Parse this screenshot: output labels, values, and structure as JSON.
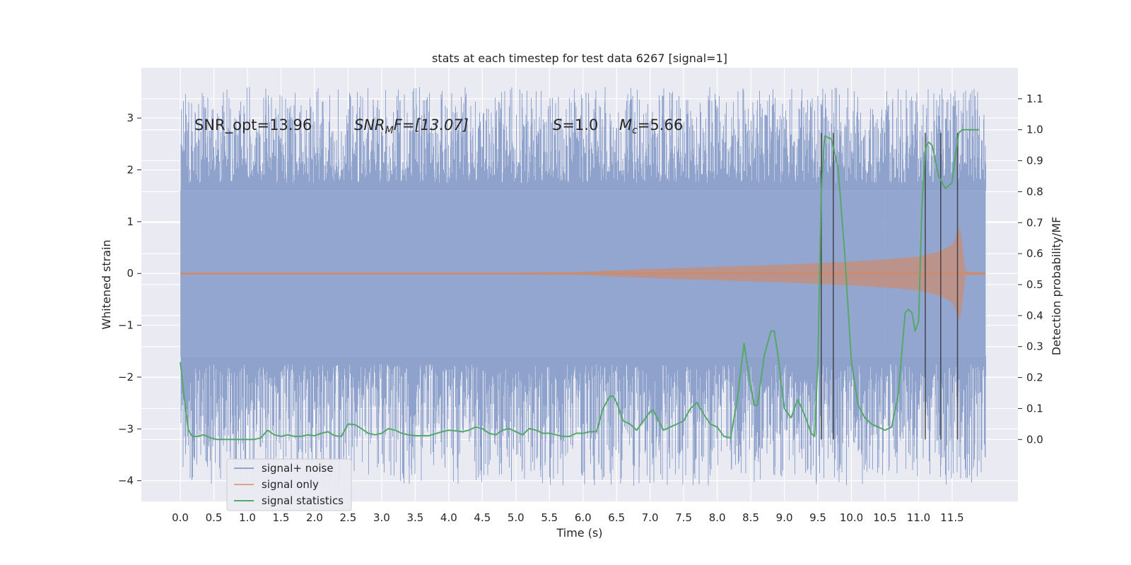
{
  "chart_data": {
    "type": "line",
    "title": "stats at each timestep for test data 6267 [signal=1]",
    "xlabel": "Time (s)",
    "ylabel": "Whitened strain",
    "ylabel_right": "Detection probability/MF",
    "xlim": [
      -0.58,
      12.48
    ],
    "ylim": [
      -4.4,
      3.97
    ],
    "ylim_right": [
      -0.2,
      1.2
    ],
    "x_ticks": [
      0.0,
      0.5,
      1.0,
      1.5,
      2.0,
      2.5,
      3.0,
      3.5,
      4.0,
      4.5,
      5.0,
      5.5,
      6.0,
      6.5,
      7.0,
      7.5,
      8.0,
      8.5,
      9.0,
      9.5,
      10.0,
      10.5,
      11.0,
      11.5
    ],
    "x_tick_labels": [
      "0.0",
      "0.5",
      "1.0",
      "1.5",
      "2.0",
      "2.5",
      "3.0",
      "3.5",
      "4.0",
      "4.5",
      "5.0",
      "5.5",
      "6.0",
      "6.5",
      "7.0",
      "7.5",
      "8.0",
      "8.5",
      "9.0",
      "9.5",
      "10.0",
      "10.5",
      "11.0",
      "11.5"
    ],
    "y_ticks": [
      -4,
      -3,
      -2,
      -1,
      0,
      1,
      2,
      3
    ],
    "y_tick_labels": [
      "−4",
      "−3",
      "−2",
      "−1",
      "0",
      "1",
      "2",
      "3"
    ],
    "y_ticks_right": [
      0.0,
      0.1,
      0.2,
      0.3,
      0.4,
      0.5,
      0.6,
      0.7,
      0.8,
      0.9,
      1.0,
      1.1
    ],
    "y_tick_labels_right": [
      "0.0",
      "0.1",
      "0.2",
      "0.3",
      "0.4",
      "0.5",
      "0.6",
      "0.7",
      "0.8",
      "0.9",
      "1.0",
      "1.1"
    ],
    "grid": true,
    "annotations": {
      "snr_opt": "SNR_opt=13.96",
      "snr_mf_sym": "SNR",
      "snr_mf_sub": "M",
      "snr_mf_rest": "F=[13.07]",
      "s_sym": "S",
      "s_rest": "=1.0",
      "mc_sym": "M",
      "mc_sub": "c",
      "mc_rest": "=5.66"
    },
    "series": [
      {
        "name": "signal+ noise",
        "color": "#8ea2cc",
        "kind": "noise",
        "x_range": [
          0.0,
          12.0
        ],
        "core_amplitude": 1.6,
        "max_amplitude": 3.6,
        "min_value": -4.1,
        "sample_rate_hz": 2048
      },
      {
        "name": "signal only",
        "color": "#dd8452",
        "kind": "chirp",
        "envelope_x": [
          0.0,
          5.0,
          6.0,
          6.5,
          7.0,
          7.5,
          8.0,
          8.5,
          9.0,
          9.5,
          10.0,
          10.5,
          11.0,
          11.3,
          11.5,
          11.62,
          11.7,
          12.0
        ],
        "envelope_amp": [
          0.02,
          0.02,
          0.03,
          0.06,
          0.09,
          0.11,
          0.13,
          0.15,
          0.17,
          0.2,
          0.23,
          0.27,
          0.33,
          0.42,
          0.55,
          0.9,
          0.04,
          0.02
        ]
      },
      {
        "name": "signal statistics",
        "color": "#55a868",
        "axis": "right",
        "x": [
          0.0,
          0.05,
          0.12,
          0.18,
          0.25,
          0.35,
          0.45,
          0.55,
          0.7,
          0.9,
          1.1,
          1.2,
          1.3,
          1.4,
          1.5,
          1.6,
          1.7,
          1.8,
          1.9,
          2.0,
          2.1,
          2.2,
          2.3,
          2.4,
          2.5,
          2.6,
          2.7,
          2.8,
          2.9,
          3.0,
          3.1,
          3.2,
          3.3,
          3.4,
          3.5,
          3.7,
          3.9,
          4.0,
          4.1,
          4.2,
          4.3,
          4.4,
          4.5,
          4.6,
          4.7,
          4.8,
          4.9,
          5.0,
          5.1,
          5.2,
          5.3,
          5.4,
          5.5,
          5.6,
          5.7,
          5.8,
          5.9,
          6.0,
          6.1,
          6.2,
          6.3,
          6.4,
          6.45,
          6.5,
          6.6,
          6.7,
          6.8,
          6.9,
          7.0,
          7.05,
          7.1,
          7.2,
          7.3,
          7.4,
          7.5,
          7.6,
          7.7,
          7.75,
          7.8,
          7.9,
          8.0,
          8.1,
          8.2,
          8.3,
          8.4,
          8.5,
          8.55,
          8.6,
          8.7,
          8.8,
          8.85,
          8.9,
          9.0,
          9.1,
          9.2,
          9.3,
          9.4,
          9.45,
          9.5,
          9.55,
          9.6,
          9.7,
          9.8,
          9.9,
          10.0,
          10.1,
          10.2,
          10.3,
          10.4,
          10.5,
          10.6,
          10.7,
          10.8,
          10.85,
          10.9,
          10.95,
          11.0,
          11.05,
          11.1,
          11.15,
          11.2,
          11.3,
          11.4,
          11.5,
          11.55,
          11.6,
          11.65,
          11.7,
          11.8,
          11.9
        ],
        "y": [
          0.25,
          0.15,
          0.03,
          0.01,
          0.01,
          0.015,
          0.005,
          0.0,
          0.0,
          0.0,
          0.0,
          0.005,
          0.03,
          0.015,
          0.01,
          0.015,
          0.01,
          0.01,
          0.015,
          0.012,
          0.02,
          0.025,
          0.012,
          0.01,
          0.05,
          0.048,
          0.035,
          0.02,
          0.015,
          0.02,
          0.035,
          0.03,
          0.02,
          0.015,
          0.012,
          0.012,
          0.025,
          0.03,
          0.028,
          0.025,
          0.03,
          0.04,
          0.035,
          0.02,
          0.015,
          0.03,
          0.035,
          0.025,
          0.015,
          0.035,
          0.03,
          0.02,
          0.02,
          0.015,
          0.01,
          0.01,
          0.02,
          0.02,
          0.025,
          0.025,
          0.1,
          0.14,
          0.14,
          0.12,
          0.06,
          0.05,
          0.03,
          0.06,
          0.09,
          0.095,
          0.07,
          0.03,
          0.04,
          0.05,
          0.06,
          0.1,
          0.12,
          0.1,
          0.08,
          0.05,
          0.04,
          0.01,
          0.005,
          0.13,
          0.31,
          0.17,
          0.11,
          0.11,
          0.27,
          0.35,
          0.35,
          0.28,
          0.1,
          0.07,
          0.13,
          0.08,
          0.02,
          0.01,
          0.25,
          0.8,
          0.98,
          0.97,
          0.88,
          0.6,
          0.25,
          0.11,
          0.07,
          0.05,
          0.04,
          0.03,
          0.04,
          0.15,
          0.41,
          0.42,
          0.41,
          0.35,
          0.38,
          0.75,
          0.94,
          0.96,
          0.95,
          0.85,
          0.81,
          0.83,
          0.92,
          0.99,
          1.0,
          1.0,
          1.0,
          1.0
        ]
      },
      {
        "name": "vertical markers",
        "color": "#333333",
        "axis": "right",
        "kind": "vlines",
        "x": [
          9.55,
          9.73,
          11.1,
          11.33,
          11.58
        ],
        "y_from": 0.0,
        "y_to": 0.99
      }
    ],
    "legend": {
      "location": "lower-left",
      "entries": [
        "signal+ noise",
        "signal only",
        "signal statistics"
      ]
    }
  }
}
